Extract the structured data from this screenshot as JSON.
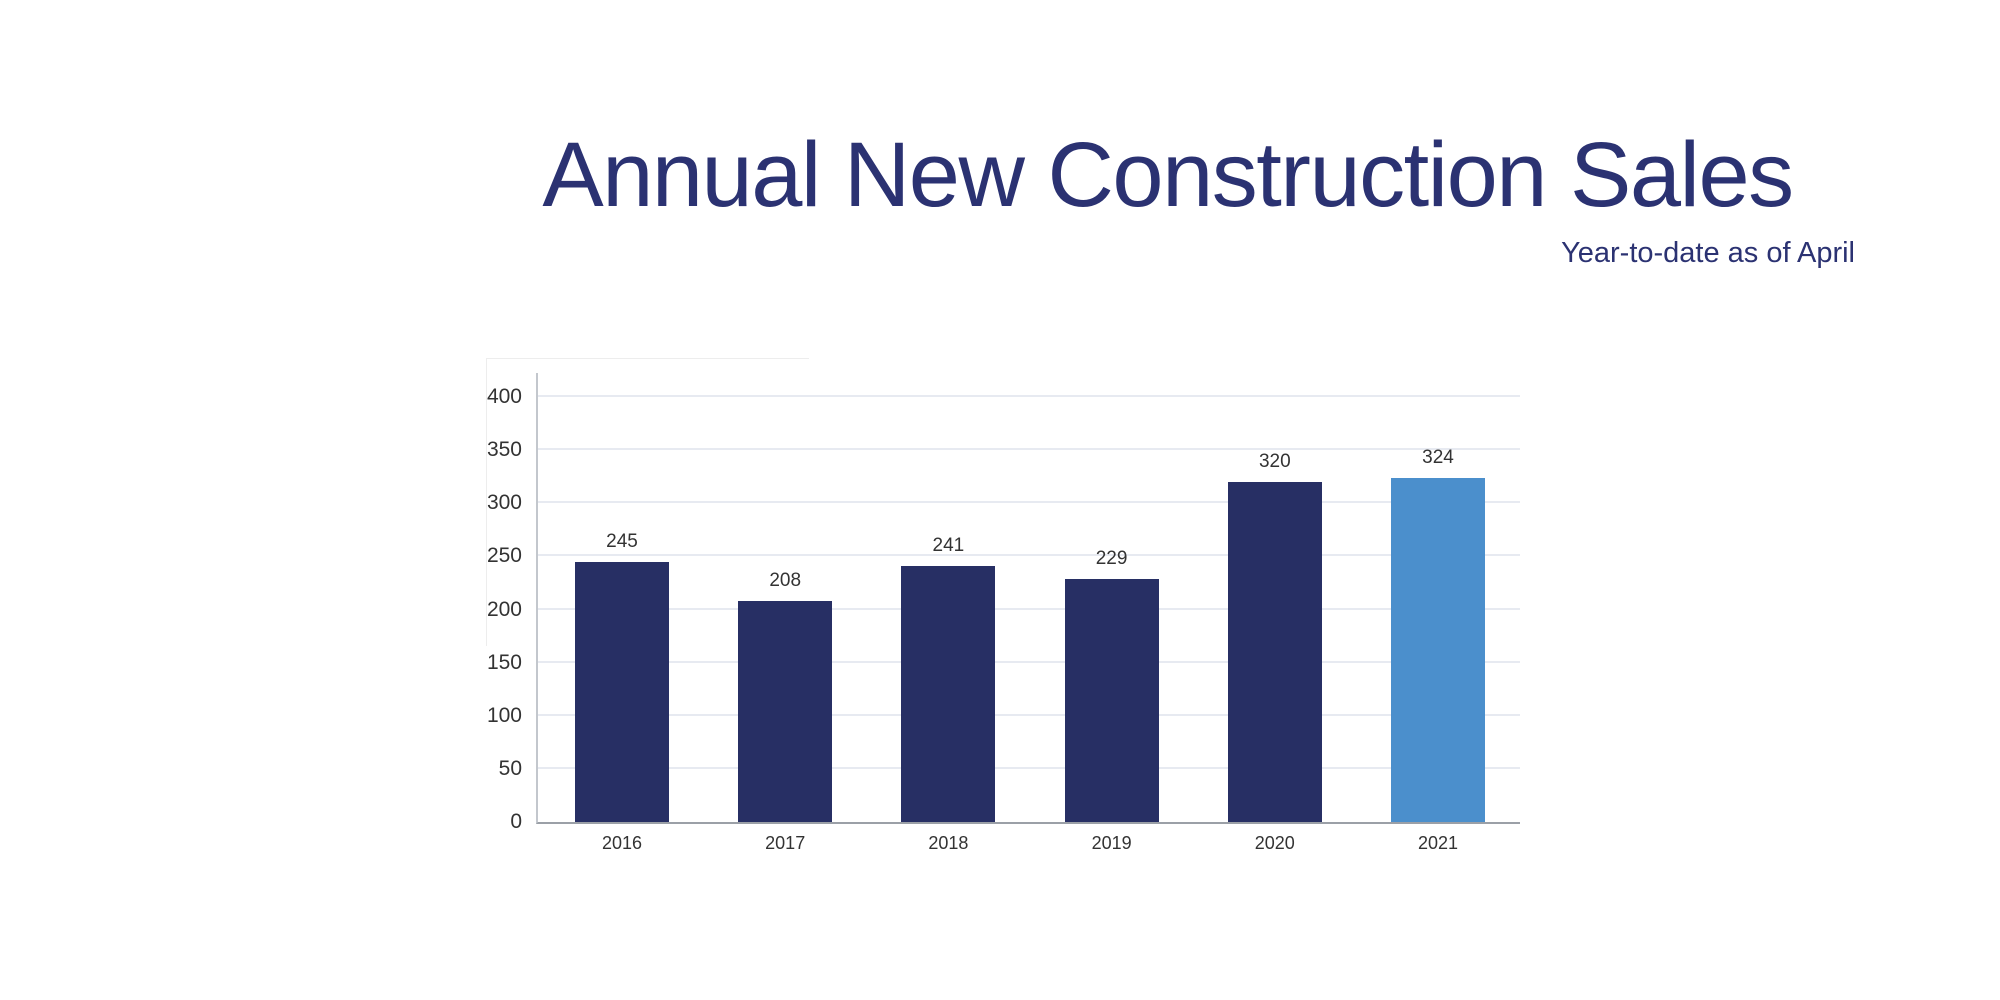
{
  "header": {
    "title": "Annual New Construction Sales",
    "subtitle": "Year-to-date as of April"
  },
  "chart_data": {
    "type": "bar",
    "title": "Annual New Construction Sales",
    "subtitle": "Year-to-date as of April",
    "categories": [
      "2016",
      "2017",
      "2018",
      "2019",
      "2020",
      "2021"
    ],
    "values": [
      245,
      208,
      241,
      229,
      320,
      324
    ],
    "highlight_index": 5,
    "xlabel": "",
    "ylabel": "",
    "ylim": [
      0,
      400
    ],
    "yticks": [
      0,
      50,
      100,
      150,
      200,
      250,
      300,
      350,
      400
    ],
    "grid": true,
    "legend_position": "none",
    "colors": {
      "bar": "#272f64",
      "highlight": "#4b8fcc",
      "title": "#2b3272",
      "grid": "#e7eaf1",
      "axis": "#c3c7cd",
      "baseline": "#9ba0a7",
      "label": "#333333"
    }
  }
}
